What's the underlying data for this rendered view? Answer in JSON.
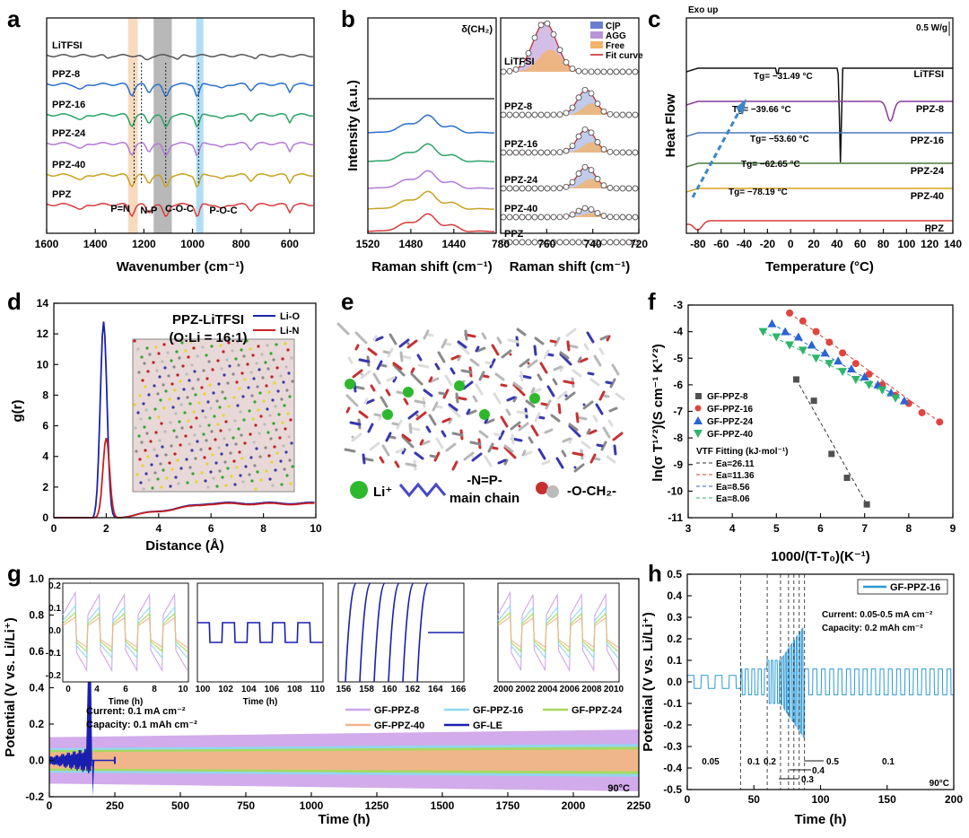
{
  "panel_letters": [
    "a",
    "b",
    "c",
    "d",
    "e",
    "f",
    "g",
    "h"
  ],
  "chart_data": [
    {
      "id": "a",
      "type": "line",
      "xlabel": "Wavenumber (cm⁻¹)",
      "xlim": [
        1600,
        500
      ],
      "xticks": [
        "1600",
        "1400",
        "1200",
        "1000",
        "800",
        "600"
      ],
      "series": [
        "LiTFSI",
        "PPZ-8",
        "PPZ-16",
        "PPZ-24",
        "PPZ-40",
        "PPZ"
      ],
      "annotations": [
        "P=N",
        "N-P",
        "C-O-C",
        "P-O-C"
      ]
    },
    {
      "id": "b",
      "type": "line",
      "ylabel": "Intensity (a.u.)",
      "left": {
        "xlabel": "Raman shift (cm⁻¹)",
        "xlim": [
          1520,
          1400
        ],
        "xticks": [
          "1520",
          "1480",
          "1440"
        ],
        "annotation": "δ(CH₂)"
      },
      "right": {
        "xlabel": "Raman shift (cm⁻¹)",
        "xlim": [
          780,
          720
        ],
        "xticks": [
          "780",
          "760",
          "740",
          "720"
        ],
        "legend": [
          "C|P",
          "AGG",
          "Free",
          "Fit curve"
        ]
      },
      "series": [
        "LiTFSI",
        "PPZ-8",
        "PPZ-16",
        "PPZ-24",
        "PPZ-40",
        "PPZ"
      ]
    },
    {
      "id": "c",
      "type": "line",
      "xlabel": "Temperature (°C)",
      "ylabel": "Heat Flow",
      "xlim": [
        -90,
        140
      ],
      "xticks": [
        "-80",
        "-60",
        "-40",
        "-20",
        "0",
        "20",
        "40",
        "60",
        "80",
        "100",
        "120",
        "140"
      ],
      "header": "Exo up",
      "scale": "0.5 W/g",
      "series": [
        {
          "name": "LiTFSI",
          "tg": ""
        },
        {
          "name": "PPZ-8",
          "tg": "Tg= −31.49 °C"
        },
        {
          "name": "PPZ-16",
          "tg": "Tg= −39.66 °C"
        },
        {
          "name": "PPZ-24",
          "tg": "Tg= −53.60 °C"
        },
        {
          "name": "PPZ-40",
          "tg": "Tg= −62.65 °C"
        },
        {
          "name": "PPZ",
          "tg": "Tg= −78.19 °C"
        }
      ]
    },
    {
      "id": "d",
      "type": "line",
      "title": "PPZ-LiTFSI",
      "subtitle": "(O:Li = 16:1)",
      "xlabel": "Distance (Å)",
      "ylabel": "g(r)",
      "xlim": [
        0,
        10
      ],
      "ylim": [
        0,
        14
      ],
      "xticks": [
        "0",
        "2",
        "4",
        "6",
        "8",
        "10"
      ],
      "yticks": [
        "0",
        "2",
        "4",
        "6",
        "8",
        "10",
        "12",
        "14"
      ],
      "series": [
        {
          "name": "Li-O",
          "color": "#1a23a8",
          "peak_x": 1.9,
          "peak_y": 12.8
        },
        {
          "name": "Li-N",
          "color": "#c8201e",
          "peak_x": 2.0,
          "peak_y": 5.2
        }
      ]
    },
    {
      "id": "e",
      "type": "diagram",
      "legend": [
        {
          "name": "Li⁺"
        },
        {
          "name": "-N=P-",
          "sub": "main chain"
        },
        {
          "name": "-O-CH₂-"
        }
      ]
    },
    {
      "id": "f",
      "type": "scatter",
      "xlabel": "1000/(T-T₀)(K⁻¹)",
      "ylabel": "ln(σ T¹ᐟ²)(S cm⁻¹ K¹ᐟ²)",
      "xlim": [
        3,
        9
      ],
      "ylim": [
        -11,
        -3
      ],
      "xticks": [
        "3",
        "4",
        "5",
        "6",
        "7",
        "8",
        "9"
      ],
      "yticks": [
        "-3",
        "-4",
        "-5",
        "-6",
        "-7",
        "-8",
        "-9",
        "-10",
        "-11"
      ],
      "fit_title": "VTF Fitting (kJ·mol⁻¹)",
      "fits": [
        "Ea=26.11",
        "Ea=11.36",
        "Ea=8.56",
        "Ea=8.06"
      ],
      "series": [
        {
          "name": "GF-PPZ-8",
          "color": "#505050",
          "marker": "square",
          "points": [
            [
              5.45,
              -5.8
            ],
            [
              5.85,
              -6.6
            ],
            [
              6.25,
              -8.6
            ],
            [
              6.6,
              -9.5
            ],
            [
              7.05,
              -10.5
            ]
          ]
        },
        {
          "name": "GF-PPZ-16",
          "color": "#e0443e",
          "marker": "circle",
          "points": [
            [
              5.3,
              -3.3
            ],
            [
              5.6,
              -3.6
            ],
            [
              5.9,
              -4.0
            ],
            [
              6.2,
              -4.4
            ],
            [
              6.5,
              -4.8
            ],
            [
              6.8,
              -5.2
            ],
            [
              7.1,
              -5.6
            ],
            [
              7.4,
              -6.0
            ],
            [
              7.7,
              -6.4
            ],
            [
              8.0,
              -6.7
            ],
            [
              8.3,
              -7.05
            ],
            [
              8.7,
              -7.4
            ]
          ]
        },
        {
          "name": "GF-PPZ-24",
          "color": "#2a63d6",
          "marker": "triangle",
          "points": [
            [
              4.9,
              -3.7
            ],
            [
              5.2,
              -4.0
            ],
            [
              5.5,
              -4.2
            ],
            [
              5.8,
              -4.5
            ],
            [
              6.1,
              -4.8
            ],
            [
              6.4,
              -5.1
            ],
            [
              6.7,
              -5.4
            ],
            [
              7.0,
              -5.7
            ],
            [
              7.3,
              -6.0
            ],
            [
              7.6,
              -6.3
            ],
            [
              7.9,
              -6.6
            ]
          ]
        },
        {
          "name": "GF-PPZ-40",
          "color": "#2fb56a",
          "marker": "triangle-down",
          "points": [
            [
              4.7,
              -4.0
            ],
            [
              5.0,
              -4.2
            ],
            [
              5.3,
              -4.5
            ],
            [
              5.6,
              -4.7
            ],
            [
              5.9,
              -5.0
            ],
            [
              6.2,
              -5.2
            ],
            [
              6.5,
              -5.5
            ],
            [
              6.8,
              -5.8
            ],
            [
              7.1,
              -6.0
            ],
            [
              7.4,
              -6.2
            ],
            [
              7.7,
              -6.5
            ]
          ]
        }
      ]
    },
    {
      "id": "g",
      "type": "line",
      "xlabel": "Time (h)",
      "ylabel": "Potential (V vs. Li/Li⁺)",
      "xlim": [
        0,
        2250
      ],
      "ylim": [
        -0.2,
        1.0
      ],
      "xticks": [
        "0",
        "250",
        "500",
        "750",
        "1000",
        "1250",
        "1500",
        "1750",
        "2000",
        "2250"
      ],
      "yticks": [
        "-0.2",
        "0.0",
        "0.2",
        "0.4",
        "0.6",
        "0.8",
        "1.0"
      ],
      "current": "Current: 0.1 mA cm⁻²",
      "capacity": "Capacity: 0.1 mAh cm⁻²",
      "temperature": "90°C",
      "series": [
        {
          "name": "GF-PPZ-8",
          "color": "#cfa6ea",
          "amplitude": 0.17
        },
        {
          "name": "GF-PPZ-16",
          "color": "#8fd8ee",
          "amplitude": 0.09
        },
        {
          "name": "GF-PPZ-24",
          "color": "#a6d95a",
          "amplitude": 0.075
        },
        {
          "name": "GF-PPZ-40",
          "color": "#f2b58b",
          "amplitude": 0.06
        },
        {
          "name": "GF-LE",
          "color": "#1a1fb0",
          "fail_time": 160
        }
      ],
      "insets": [
        {
          "xticks": [
            "0",
            "4",
            "6",
            "8",
            "10"
          ],
          "xlabel": "Time (h)"
        },
        {
          "xticks": [
            "100",
            "102",
            "104",
            "106",
            "108",
            "110"
          ],
          "xlabel": "Time (h)"
        },
        {
          "xticks": [
            "156",
            "158",
            "160",
            "162",
            "164",
            "166"
          ],
          "xlabel": ""
        },
        {
          "xticks": [
            "2000",
            "2002",
            "2004",
            "2006",
            "2008",
            "2010"
          ],
          "xlabel": ""
        }
      ],
      "inset_yticks": [
        "0.2",
        "0.1",
        "0.0",
        "-0.1",
        "-0.2"
      ]
    },
    {
      "id": "h",
      "type": "line",
      "xlabel": "Time (h)",
      "ylabel": "Potential (V vs. Li/Li⁺)",
      "xlim": [
        0,
        200
      ],
      "ylim": [
        -0.5,
        0.5
      ],
      "xticks": [
        "0",
        "50",
        "100",
        "150",
        "200"
      ],
      "yticks": [
        "0.5",
        "0.4",
        "0.3",
        "0.2",
        "0.1",
        "0.0",
        "-0.1",
        "-0.2",
        "-0.3",
        "-0.4",
        "-0.5"
      ],
      "series": [
        {
          "name": "GF-PPZ-16",
          "color": "#2a9ad8"
        }
      ],
      "current": "Current: 0.05-0.5 mA cm⁻²",
      "capacity": "Capacity: 0.2 mAh cm⁻²",
      "temperature": "90°C",
      "rates": [
        "0.05",
        "0.1",
        "0.2",
        "0.5",
        "0.4",
        "0.3",
        "0.1"
      ]
    }
  ]
}
